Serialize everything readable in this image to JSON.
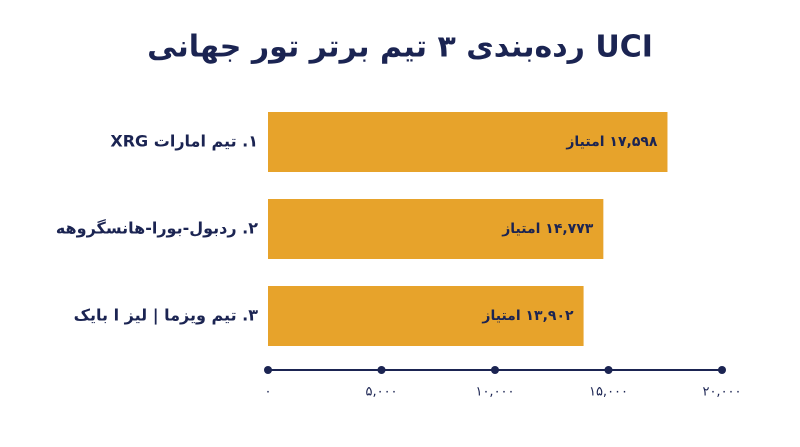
{
  "chart_data": {
    "type": "barh",
    "title": "رده‌بندی ۳ تیم برتر تور جهانی UCI",
    "categories": [
      "۱. تیم امارات XRG",
      "۲. ردبول-بورا-هانسگروهه",
      "۳. تیم ویزما | لیز ا بایک"
    ],
    "values": [
      17598,
      14773,
      13902
    ],
    "value_labels": [
      "۱۷,۵۹۸ امتیاز",
      "۱۴,۷۷۳ امتیاز",
      "۱۳,۹۰۲ امتیاز"
    ],
    "color": "#e7a32b",
    "xlim": [
      0,
      20000
    ],
    "xticks": [
      {
        "value": 0,
        "label": "۰"
      },
      {
        "value": 5000,
        "label": "۵,۰۰۰"
      },
      {
        "value": 10000,
        "label": "۱۰,۰۰۰"
      },
      {
        "value": 15000,
        "label": "۱۵,۰۰۰"
      },
      {
        "value": 20000,
        "label": "۲۰,۰۰۰"
      }
    ]
  }
}
